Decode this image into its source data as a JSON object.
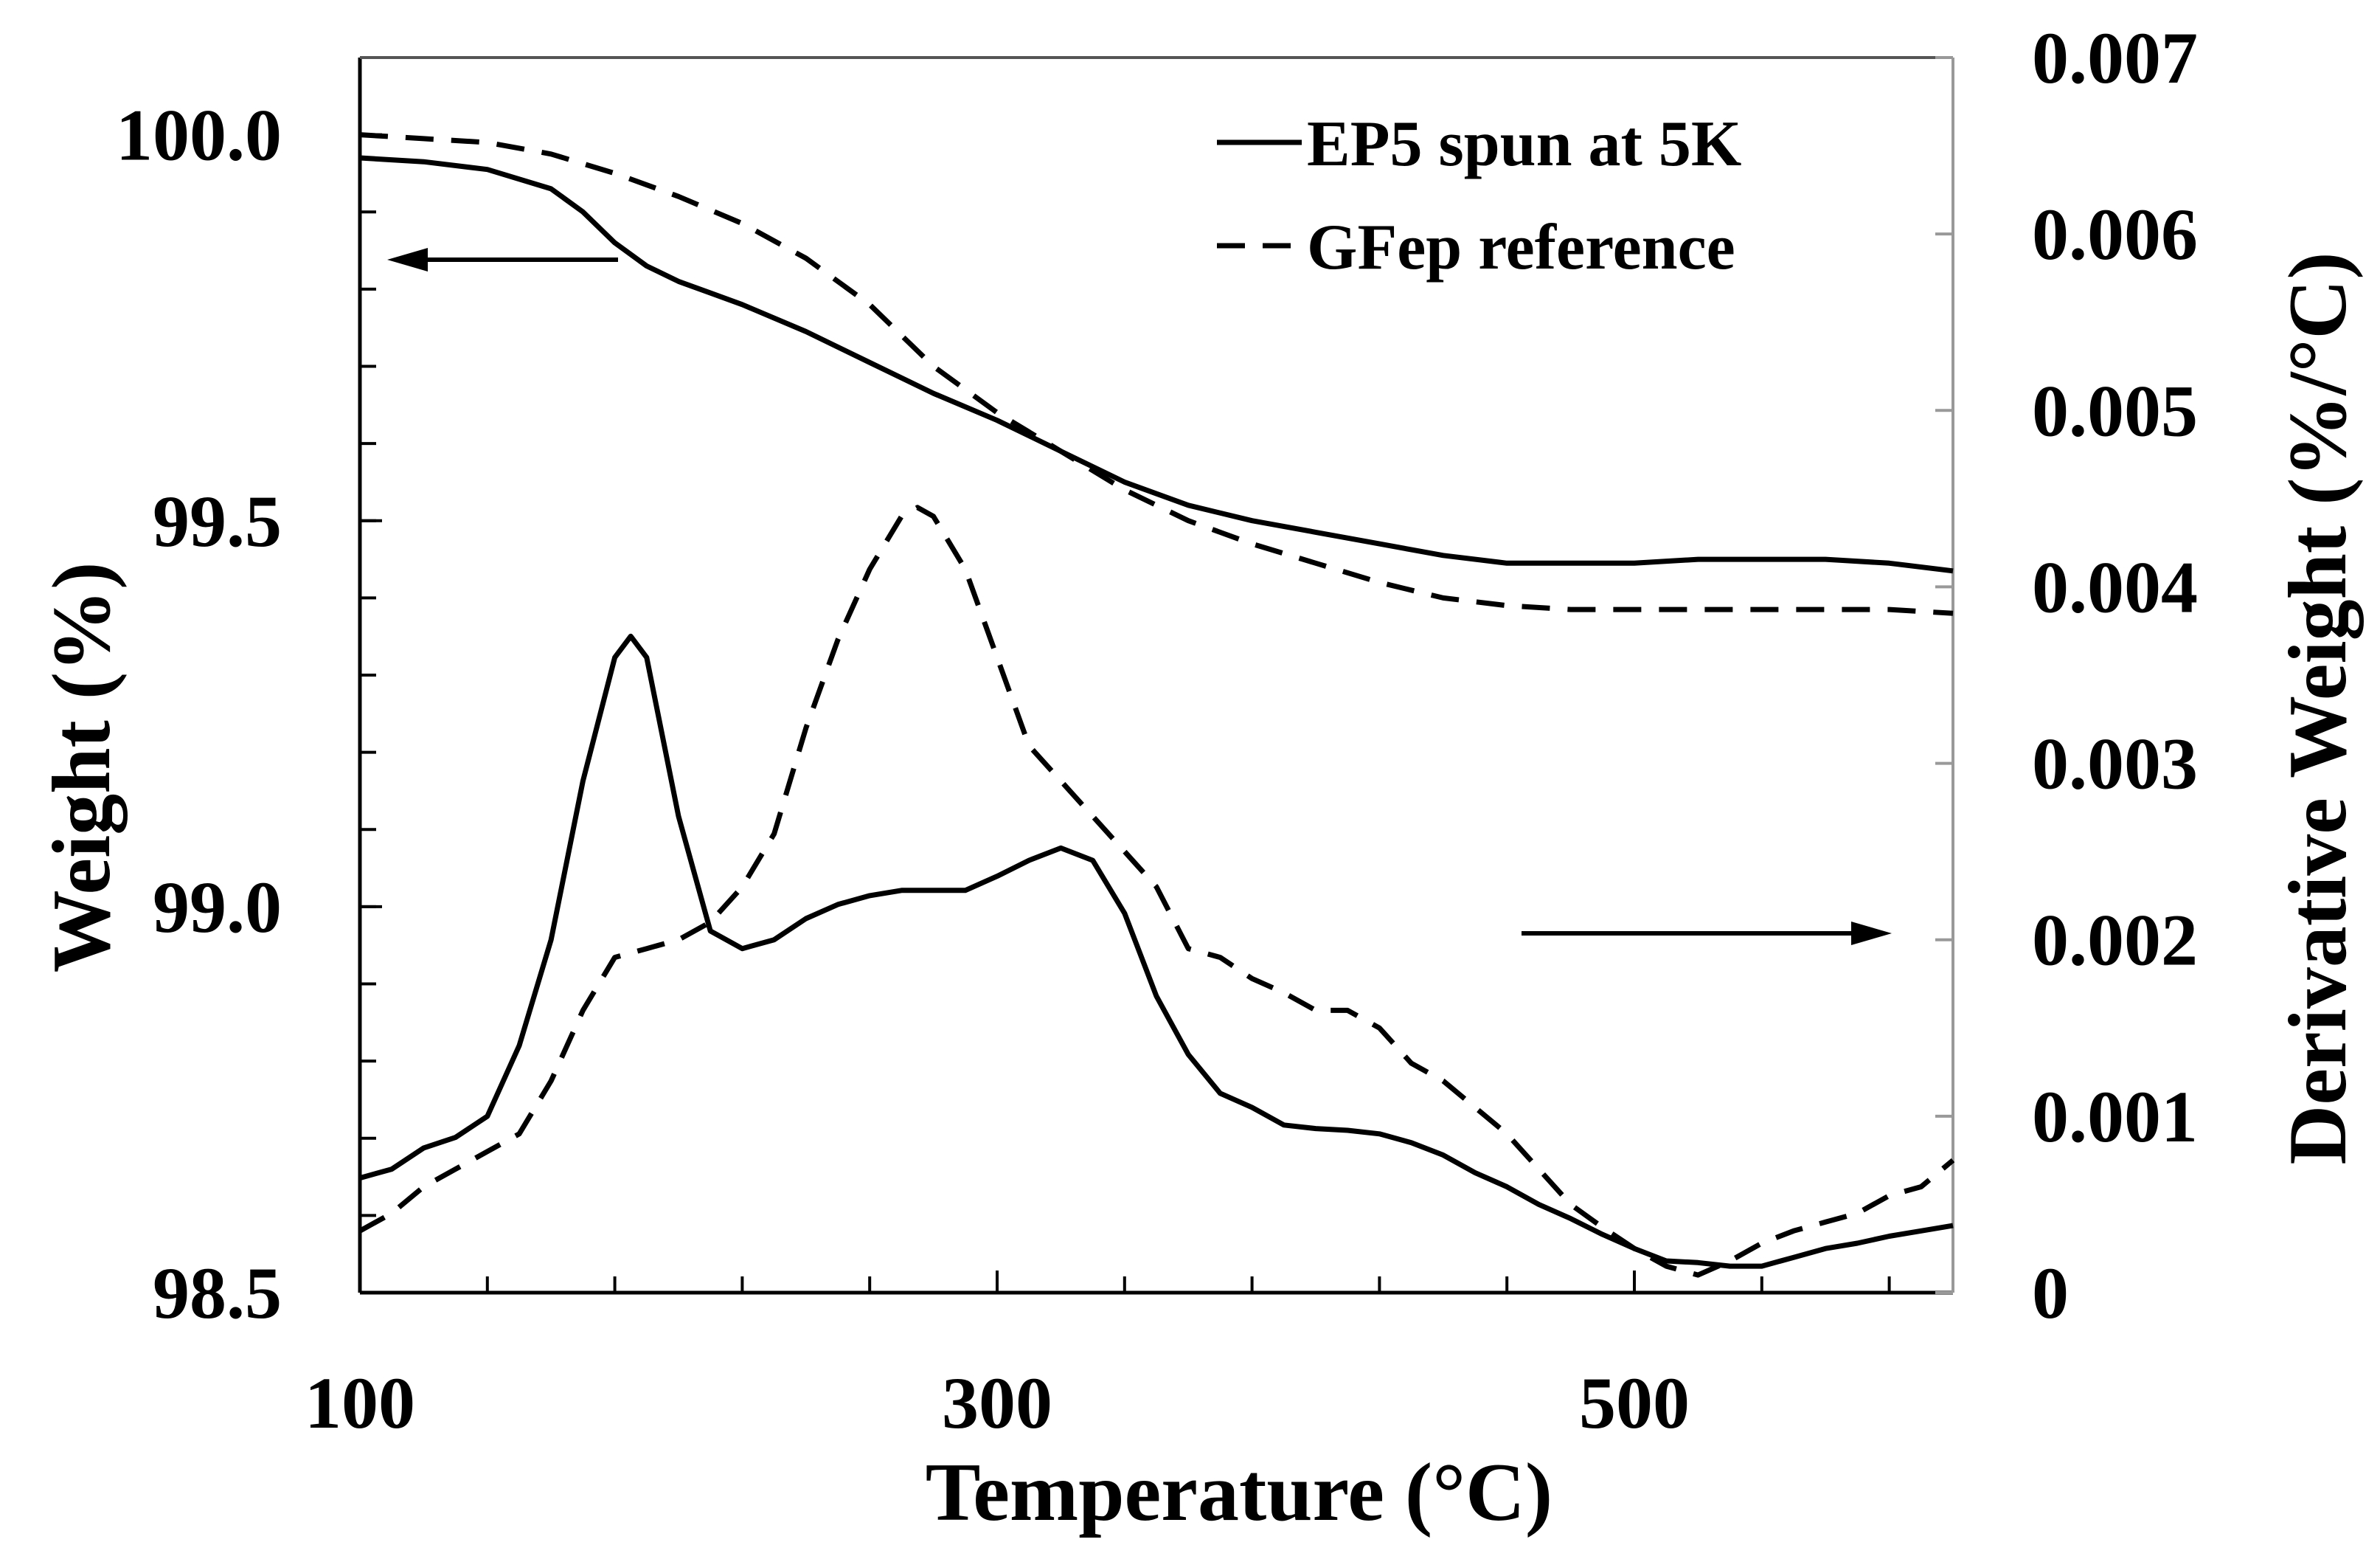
{
  "chart_data": {
    "type": "line",
    "xlabel": "Temperature (°C)",
    "ylabel": "Weight (%)",
    "y2label": "Derivative Weight (%/°C)",
    "xlim": [
      100,
      600
    ],
    "ylim": [
      98.5,
      100.1
    ],
    "y2lim": [
      0,
      0.007
    ],
    "x_ticks": [
      100,
      300,
      500
    ],
    "x_tick_labels": [
      "100",
      "300",
      "500"
    ],
    "y_ticks": [
      98.5,
      99.0,
      99.5,
      100.0
    ],
    "y_tick_labels": [
      "98.5",
      "99.0",
      "99.5",
      "100.0"
    ],
    "y2_ticks": [
      0,
      0.001,
      0.002,
      0.003,
      0.004,
      0.005,
      0.006,
      0.007
    ],
    "y2_tick_labels": [
      "0",
      "0.001",
      "0.002",
      "0.003",
      "0.004",
      "0.005",
      "0.006",
      "0.007"
    ],
    "grid": false,
    "legend_position": "top-right",
    "legend": [
      "EP5 spun at 5K",
      "GFep reference"
    ],
    "series": [
      {
        "name": "EP5 spun at 5K",
        "kind": "weight",
        "axis": "left",
        "style": "solid",
        "x": [
          100,
          120,
          140,
          160,
          170,
          180,
          190,
          200,
          210,
          220,
          240,
          260,
          280,
          300,
          320,
          340,
          360,
          380,
          400,
          420,
          440,
          460,
          480,
          500,
          520,
          540,
          560,
          580,
          600
        ],
        "y": [
          99.97,
          99.965,
          99.955,
          99.93,
          99.9,
          99.86,
          99.83,
          99.81,
          99.795,
          99.78,
          99.745,
          99.705,
          99.665,
          99.63,
          99.59,
          99.55,
          99.52,
          99.5,
          99.485,
          99.47,
          99.455,
          99.445,
          99.445,
          99.445,
          99.45,
          99.45,
          99.45,
          99.445,
          99.435
        ]
      },
      {
        "name": "GFep reference",
        "kind": "weight",
        "axis": "left",
        "style": "dashed",
        "x": [
          100,
          120,
          140,
          160,
          180,
          200,
          220,
          240,
          260,
          280,
          300,
          320,
          340,
          360,
          380,
          400,
          420,
          440,
          460,
          480,
          500,
          520,
          540,
          560,
          580,
          600
        ],
        "y": [
          100.0,
          99.995,
          99.99,
          99.975,
          99.95,
          99.92,
          99.885,
          99.84,
          99.78,
          99.7,
          99.64,
          99.59,
          99.54,
          99.5,
          99.47,
          99.445,
          99.42,
          99.4,
          99.39,
          99.385,
          99.385,
          99.385,
          99.385,
          99.385,
          99.385,
          99.38
        ]
      },
      {
        "name": "EP5 spun at 5K",
        "kind": "derivative",
        "axis": "right",
        "style": "solid",
        "x": [
          100,
          110,
          120,
          130,
          140,
          150,
          160,
          170,
          180,
          185,
          190,
          200,
          210,
          220,
          230,
          240,
          250,
          260,
          270,
          280,
          290,
          300,
          310,
          320,
          330,
          340,
          350,
          360,
          370,
          380,
          390,
          400,
          410,
          420,
          430,
          440,
          450,
          460,
          470,
          480,
          490,
          500,
          510,
          520,
          530,
          540,
          550,
          560,
          570,
          580,
          590,
          600
        ],
        "y": [
          0.00065,
          0.0007,
          0.00082,
          0.00088,
          0.001,
          0.0014,
          0.002,
          0.0029,
          0.0036,
          0.00372,
          0.0036,
          0.0027,
          0.00205,
          0.00195,
          0.002,
          0.00212,
          0.0022,
          0.00225,
          0.00228,
          0.00228,
          0.00228,
          0.00236,
          0.00245,
          0.00252,
          0.00245,
          0.00215,
          0.00168,
          0.00135,
          0.00113,
          0.00105,
          0.00095,
          0.00093,
          0.00092,
          0.0009,
          0.00085,
          0.00078,
          0.00068,
          0.0006,
          0.0005,
          0.00042,
          0.00033,
          0.00025,
          0.00018,
          0.00017,
          0.00015,
          0.00015,
          0.0002,
          0.00025,
          0.00028,
          0.00032,
          0.00035,
          0.00038
        ]
      },
      {
        "name": "GFep reference",
        "kind": "derivative",
        "axis": "right",
        "style": "dashed",
        "x": [
          100,
          110,
          120,
          130,
          140,
          150,
          160,
          170,
          180,
          190,
          200,
          210,
          220,
          230,
          240,
          250,
          260,
          270,
          275,
          280,
          285,
          290,
          300,
          310,
          320,
          330,
          340,
          350,
          360,
          370,
          380,
          390,
          400,
          410,
          420,
          430,
          440,
          450,
          460,
          470,
          480,
          490,
          500,
          510,
          520,
          530,
          540,
          550,
          560,
          570,
          580,
          590,
          600
        ],
        "y": [
          0.00035,
          0.00045,
          0.0006,
          0.0007,
          0.0008,
          0.0009,
          0.0012,
          0.0016,
          0.0019,
          0.00195,
          0.002,
          0.0021,
          0.0023,
          0.0026,
          0.0032,
          0.0037,
          0.0041,
          0.0044,
          0.00445,
          0.0044,
          0.00425,
          0.0041,
          0.0036,
          0.0031,
          0.0029,
          0.0027,
          0.0025,
          0.0023,
          0.00195,
          0.0019,
          0.00178,
          0.0017,
          0.0016,
          0.0016,
          0.0015,
          0.0013,
          0.0012,
          0.00105,
          0.0009,
          0.0007,
          0.0005,
          0.00037,
          0.00025,
          0.00015,
          0.0001,
          0.00018,
          0.00028,
          0.00035,
          0.0004,
          0.00045,
          0.00055,
          0.0006,
          0.00075
        ]
      }
    ]
  }
}
